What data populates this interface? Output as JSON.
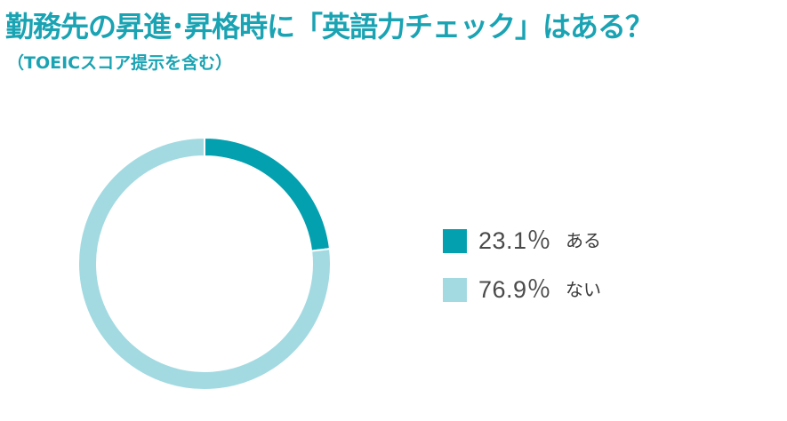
{
  "title": "勤務先の昇進･昇格時に「英語力チェック」はある？",
  "subtitle": "（TOEICスコア提示を含む）",
  "colors": {
    "title": "#1aa3b3",
    "ari": "#03a0b0",
    "nai": "#a3dae2"
  },
  "chart_data": {
    "type": "pie",
    "title": "勤務先の昇進･昇格時に「英語力チェック」はある？",
    "subtitle": "（TOEICスコア提示を含む）",
    "donut": true,
    "legend_position": "right",
    "categories": [
      "ある",
      "ない"
    ],
    "values": [
      23.1,
      76.9
    ],
    "unit": "%",
    "value_labels": [
      "23.1％",
      "76.9％"
    ],
    "colors": [
      "#03a0b0",
      "#a3dae2"
    ]
  }
}
